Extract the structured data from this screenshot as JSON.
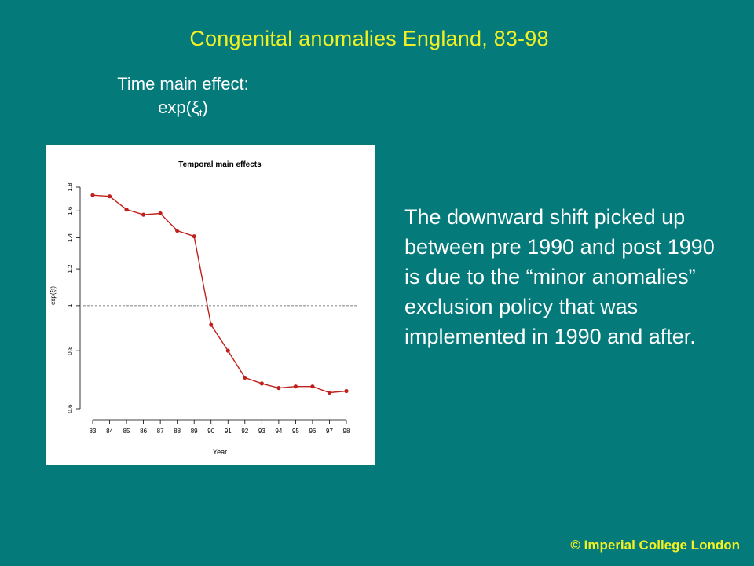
{
  "slide": {
    "title": "Congenital anomalies England, 83-98",
    "subtitle_line1": "Time main effect:",
    "subtitle_expr_prefix": "exp(ξ",
    "subtitle_expr_sub": "t",
    "subtitle_expr_suffix": ")",
    "body_text": "The downward shift picked up between pre 1990 and post 1990 is due to the “minor anomalies” exclusion policy that was implemented in 1990 and after.",
    "copyright": "© Imperial College London"
  },
  "colors": {
    "background": "#047a7a",
    "title": "#f0f024",
    "series": "#c0201c"
  },
  "chart_data": {
    "type": "line",
    "title": "Temporal main effects",
    "xlabel": "Year",
    "ylabel": "exp(ξt)",
    "x": [
      "83",
      "84",
      "85",
      "86",
      "87",
      "88",
      "89",
      "90",
      "91",
      "92",
      "93",
      "94",
      "95",
      "96",
      "97",
      "98"
    ],
    "series": [
      {
        "values": [
          1.73,
          1.72,
          1.61,
          1.57,
          1.58,
          1.45,
          1.41,
          0.91,
          0.8,
          0.7,
          0.68,
          0.665,
          0.67,
          0.67,
          0.65,
          0.655
        ]
      }
    ],
    "y_ticks": [
      0.6,
      0.8,
      1,
      1.2,
      1.4,
      1.6,
      1.8
    ],
    "y_tick_labels": [
      "0.6",
      "0.8",
      "1",
      "1.2",
      "1.4",
      "1.6",
      "1.8"
    ],
    "ylim": [
      0.6,
      1.8
    ],
    "log_scale_y": true,
    "reference_line": 1,
    "grid": false
  }
}
